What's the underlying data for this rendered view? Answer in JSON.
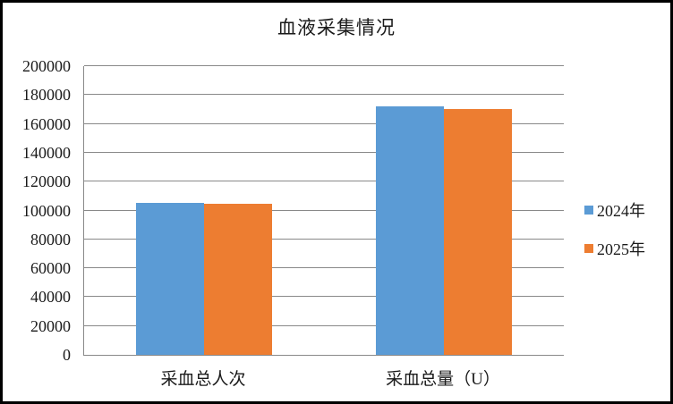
{
  "chart_data": {
    "type": "bar",
    "title": "血液采集情况",
    "categories": [
      "采血总人次",
      "采血总量（U）"
    ],
    "series": [
      {
        "name": "2024年",
        "color": "#5B9BD5",
        "values": [
          105000,
          172300
        ]
      },
      {
        "name": "2025年",
        "color": "#ED7D31",
        "values": [
          104700,
          170500
        ]
      }
    ],
    "xlabel": "",
    "ylabel": "",
    "ylim": [
      0,
      200000
    ],
    "ytick_step": 20000,
    "grid": true,
    "legend_position": "right"
  },
  "colors": {
    "gridline": "#898989",
    "axis": "#898989",
    "outer_border": "#000000",
    "background": "#FFFFFF",
    "text": "#1A1A1A"
  }
}
